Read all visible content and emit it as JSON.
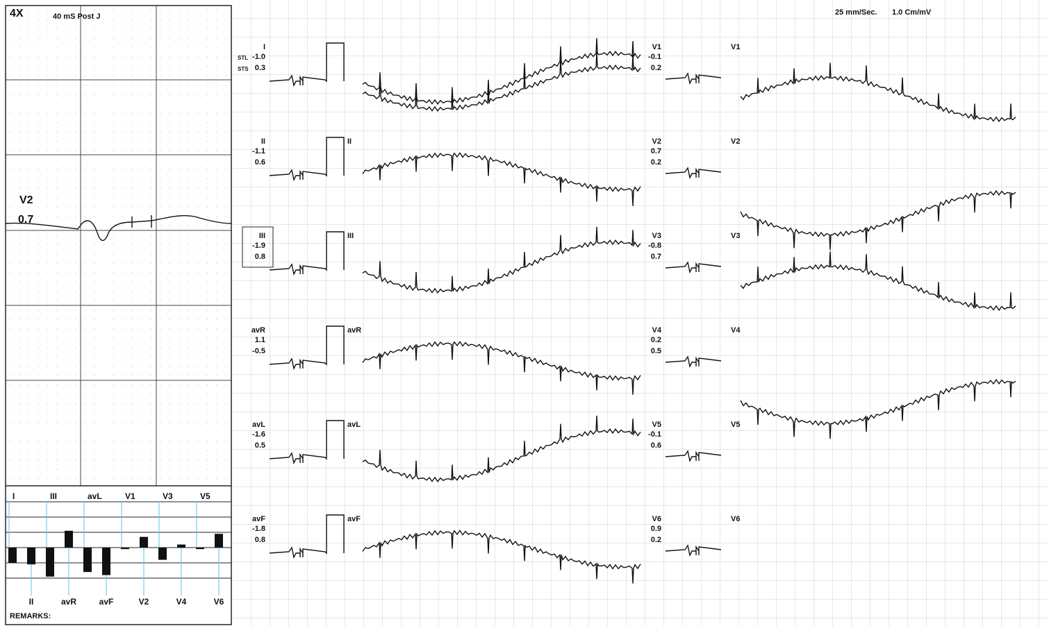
{
  "header": {
    "magnification": "4X",
    "measure_point": "40 mS Post J",
    "speed": "25 mm/Sec.",
    "gain": "1.0 Cm/mV"
  },
  "stl_label": "STL",
  "sts_label": "STS",
  "leads": [
    {
      "name": "I",
      "stl": "-1.0",
      "sts": "0.3"
    },
    {
      "name": "II",
      "stl": "-1.1",
      "sts": "0.6"
    },
    {
      "name": "III",
      "stl": "-1.9",
      "sts": "0.8"
    },
    {
      "name": "avR",
      "stl": "1.1",
      "sts": "-0.5"
    },
    {
      "name": "avL",
      "stl": "-1.6",
      "sts": "0.5"
    },
    {
      "name": "avF",
      "stl": "-1.8",
      "sts": "0.8"
    },
    {
      "name": "V1",
      "stl": "-0.1",
      "sts": "0.2"
    },
    {
      "name": "V2",
      "stl": "0.7",
      "sts": "0.2"
    },
    {
      "name": "V3",
      "stl": "-0.8",
      "sts": "0.7"
    },
    {
      "name": "V4",
      "stl": "0.2",
      "sts": "0.5"
    },
    {
      "name": "V5",
      "stl": "-0.1",
      "sts": "0.6"
    },
    {
      "name": "V6",
      "stl": "0.9",
      "sts": "0.2"
    }
  ],
  "remarks": "REMARKS:"
}
